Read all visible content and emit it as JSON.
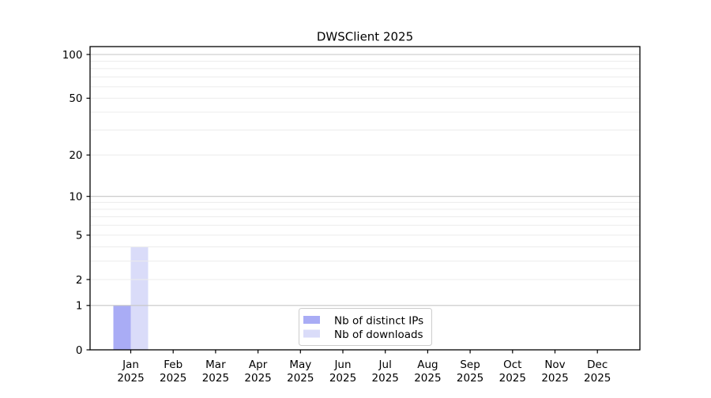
{
  "chart_data": {
    "type": "bar",
    "title": "DWSClient 2025",
    "categories": [
      "Jan",
      "Feb",
      "Mar",
      "Apr",
      "May",
      "Jun",
      "Jul",
      "Aug",
      "Sep",
      "Oct",
      "Nov",
      "Dec"
    ],
    "category_year": "2025",
    "series": [
      {
        "name": "Nb of distinct IPs",
        "color": "#a9acf5",
        "values": [
          1,
          0,
          0,
          0,
          0,
          0,
          0,
          0,
          0,
          0,
          0,
          0
        ]
      },
      {
        "name": "Nb of downloads",
        "color": "#dadcf9",
        "values": [
          4,
          0,
          0,
          0,
          0,
          0,
          0,
          0,
          0,
          0,
          0,
          0
        ]
      }
    ],
    "y_axis": {
      "scale": "log1p",
      "tick_values": [
        0,
        1,
        2,
        5,
        10,
        20,
        50,
        100
      ],
      "major_gridlines": [
        1,
        10,
        100
      ],
      "minor_gridlines": [
        2,
        3,
        4,
        5,
        6,
        7,
        8,
        9,
        20,
        30,
        40,
        50,
        60,
        70,
        80,
        90
      ],
      "top_value": 100
    },
    "legend": {
      "position": "lower center"
    },
    "grid": true,
    "grid_above_bars": true
  },
  "colors": {
    "background": "#ffffff",
    "axis": "#000000",
    "text": "#000000",
    "major_grid": "#c6c6c6",
    "minor_grid": "#ececec",
    "legend_border": "#cccccc"
  }
}
